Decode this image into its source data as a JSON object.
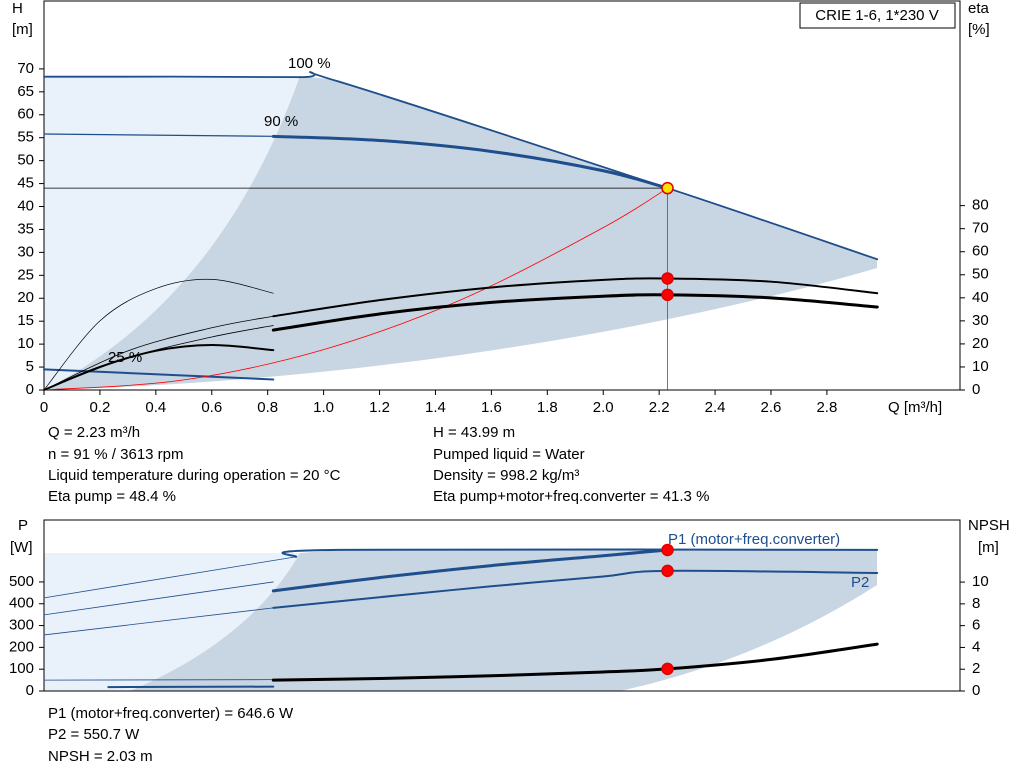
{
  "chart_data": [
    {
      "type": "line",
      "title": "CRIE 1-6, 1*230 V",
      "y_label": "H",
      "y_unit": "[m]",
      "y2_label": "eta",
      "y2_unit": "[%]",
      "x_label": "Q [m³/h]",
      "xlim": [
        0,
        3.276
      ],
      "xticks": [
        0,
        0.2,
        0.4,
        0.6,
        0.8,
        {
          "value": 1,
          "label": "1.0"
        },
        1.2,
        1.4,
        1.6,
        1.8,
        {
          "value": 2,
          "label": "2.0"
        },
        2.2,
        2.4,
        2.6,
        2.8
      ],
      "ylim": [
        0,
        84.8
      ],
      "yticks": [
        0,
        5,
        10,
        15,
        20,
        25,
        30,
        35,
        40,
        45,
        50,
        55,
        60,
        65,
        70
      ],
      "y2lim": [
        0,
        168.8
      ],
      "y2ticks": [
        0,
        10,
        20,
        30,
        40,
        50,
        60,
        70,
        80
      ],
      "curve_labels": [
        "100 %",
        "90 %",
        "25 %"
      ],
      "series": [
        {
          "color": "#1f4e8c",
          "width": 1.8,
          "x": [
            0,
            0.9,
            1.05,
            2.23,
            2.98
          ],
          "values": [
            68.3,
            68.2,
            67.3,
            44,
            28.5
          ]
        },
        {
          "color": "#1f4e8c",
          "width": 1.2,
          "x": [
            0,
            0.82
          ],
          "values": [
            55.8,
            55.3
          ]
        },
        {
          "color": "#1f4e8c",
          "width": 3,
          "x": [
            0.82,
            1.2,
            1.6,
            2.0,
            2.23
          ],
          "values": [
            55.3,
            54.4,
            52,
            47.8,
            44
          ]
        },
        {
          "color": "#1f4e8c",
          "width": 2,
          "x": [
            0,
            0.82
          ],
          "values": [
            4.5,
            2.3
          ]
        },
        {
          "color": "#ff0000",
          "width": 0.8,
          "x": [
            0,
            0.5,
            1.0,
            1.5,
            2.0,
            2.23
          ],
          "values": [
            0,
            2.2,
            8.8,
            19.9,
            35.4,
            44
          ]
        },
        {
          "color": "#000000",
          "width": 2,
          "axis": "y2",
          "x": [
            0.82,
            1.2,
            1.6,
            2.0,
            2.23,
            2.6,
            2.98
          ],
          "values": [
            32,
            39,
            44.5,
            47.8,
            48.4,
            47,
            42
          ]
        },
        {
          "color": "#000000",
          "width": 3,
          "axis": "y2",
          "x": [
            0.82,
            1.2,
            1.6,
            2.0,
            2.23,
            2.6,
            2.98
          ],
          "values": [
            26,
            33,
            38,
            40.7,
            41.3,
            40,
            36
          ]
        },
        {
          "color": "#000000",
          "width": 0.8,
          "axis": "y2",
          "x": [
            0,
            0.3,
            0.6,
            0.82
          ],
          "values": [
            0,
            17,
            27,
            32
          ]
        },
        {
          "color": "#000000",
          "width": 0.8,
          "axis": "y2",
          "x": [
            0,
            0.3,
            0.6,
            0.82
          ],
          "values": [
            0,
            14,
            23,
            28
          ]
        },
        {
          "color": "#000000",
          "width": 0.7,
          "axis": "y2",
          "x": [
            0,
            0.2,
            0.4,
            0.6,
            0.82
          ],
          "values": [
            0,
            30,
            44,
            48,
            42
          ]
        },
        {
          "color": "#000000",
          "width": 2,
          "axis": "y2",
          "x": [
            0,
            0.2,
            0.4,
            0.6,
            0.82
          ],
          "values": [
            0,
            10,
            17,
            19.5,
            17.3
          ]
        }
      ],
      "points": [
        {
          "x": 2.23,
          "y": 44,
          "color": "#f5e400"
        },
        {
          "x": 2.23,
          "y": 48.4,
          "axis": "y2",
          "color": "#ff0000"
        },
        {
          "x": 2.23,
          "y": 41.3,
          "axis": "y2",
          "color": "#ff0000"
        }
      ],
      "info": [
        [
          "Q = 2.23 m³/h",
          "n = 91 % / 3613 rpm",
          "Liquid temperature during operation = 20 °C",
          "Eta pump = 48.4 %"
        ],
        [
          "H = 43.99 m",
          "Pumped liquid = Water",
          "Density = 998.2 kg/m³",
          "Eta pump+motor+freq.converter = 41.3 %"
        ]
      ]
    },
    {
      "type": "line",
      "y_label": "P",
      "y_unit": "[W]",
      "y2_label": "NPSH",
      "y2_unit": "[m]",
      "xlim": [
        0,
        3.276
      ],
      "ylim": [
        0,
        784
      ],
      "yticks": [
        0,
        100,
        200,
        300,
        400,
        500
      ],
      "y2lim": [
        0,
        15.7
      ],
      "y2ticks": [
        0,
        2,
        4,
        6,
        8,
        10
      ],
      "curve_labels": [
        "P1 (motor+freq.converter)",
        "P2"
      ],
      "series": [
        {
          "color": "#1f4e8c",
          "width": 2,
          "x": [
            0.9,
            1.05,
            2.98
          ],
          "values": [
            615,
            647,
            647
          ]
        },
        {
          "color": "#1f4e8c",
          "width": 3,
          "x": [
            0.82,
            1.2,
            1.6,
            2.0,
            2.23
          ],
          "values": [
            459,
            520,
            575,
            620,
            646.6
          ]
        },
        {
          "color": "#1f4e8c",
          "width": 2,
          "x": [
            0.82,
            1.2,
            1.6,
            2.0,
            2.23,
            2.98
          ],
          "values": [
            381,
            430,
            480,
            525,
            550.7,
            541
          ]
        },
        {
          "color": "#1f4e8c",
          "width": 0.8,
          "x": [
            0,
            0.9
          ],
          "values": [
            427,
            615
          ]
        },
        {
          "color": "#1f4e8c",
          "width": 0.8,
          "x": [
            0,
            0.82
          ],
          "values": [
            349,
            500
          ]
        },
        {
          "color": "#1f4e8c",
          "width": 0.8,
          "x": [
            0,
            0.82
          ],
          "values": [
            257,
            381
          ]
        },
        {
          "color": "#1f4e8c",
          "width": 0.8,
          "x": [
            0,
            0.82
          ],
          "values": [
            50,
            52
          ]
        },
        {
          "color": "#1f4e8c",
          "width": 2,
          "x": [
            0.23,
            0.82
          ],
          "values": [
            18,
            20
          ]
        },
        {
          "color": "#000000",
          "width": 3,
          "axis": "y2",
          "x": [
            0.82,
            1.2,
            1.6,
            2.0,
            2.23,
            2.6,
            2.98
          ],
          "values": [
            1.0,
            1.15,
            1.4,
            1.75,
            2.03,
            2.9,
            4.3
          ]
        }
      ],
      "points": [
        {
          "x": 2.23,
          "y": 646.6,
          "color": "#ff0000"
        },
        {
          "x": 2.23,
          "y": 550.7,
          "color": "#ff0000"
        },
        {
          "x": 2.23,
          "y": 2.03,
          "axis": "y2",
          "color": "#ff0000"
        }
      ],
      "info": [
        "P1 (motor+freq.converter) = 646.6 W",
        "P2 = 550.7 W",
        "NPSH = 2.03 m"
      ]
    }
  ]
}
